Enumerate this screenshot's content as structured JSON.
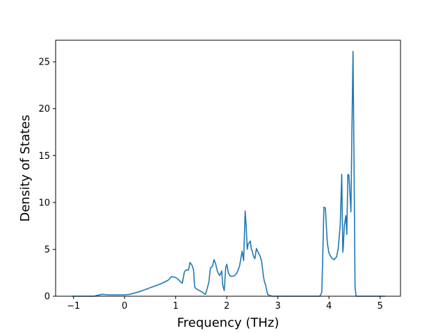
{
  "chart_data": {
    "type": "line",
    "title": "",
    "xlabel": "Frequency (THz)",
    "ylabel": "Density of States",
    "xlim": [
      -1.35,
      5.4
    ],
    "ylim": [
      0,
      27.3
    ],
    "xticks": [
      -1,
      0,
      1,
      2,
      3,
      4,
      5
    ],
    "yticks": [
      0,
      5,
      10,
      15,
      20,
      25
    ],
    "grid": false,
    "legend": "none",
    "series": [
      {
        "color": "#1f77b4",
        "x": [
          -1.03,
          -0.6,
          -0.45,
          -0.3,
          0.0,
          0.1,
          0.3,
          0.5,
          0.7,
          0.85,
          0.92,
          1.0,
          1.05,
          1.1,
          1.13,
          1.17,
          1.2,
          1.25,
          1.28,
          1.32,
          1.35,
          1.37,
          1.4,
          1.5,
          1.55,
          1.58,
          1.6,
          1.65,
          1.68,
          1.72,
          1.75,
          1.78,
          1.82,
          1.86,
          1.9,
          1.92,
          1.95,
          1.98,
          2.0,
          2.03,
          2.06,
          2.1,
          2.15,
          2.2,
          2.25,
          2.3,
          2.33,
          2.36,
          2.38,
          2.4,
          2.42,
          2.44,
          2.46,
          2.48,
          2.5,
          2.52,
          2.55,
          2.58,
          2.62,
          2.65,
          2.68,
          2.72,
          2.74,
          2.76,
          2.8,
          2.85,
          2.9,
          3.0,
          3.3,
          3.6,
          3.82,
          3.86,
          3.88,
          3.9,
          3.93,
          3.95,
          3.97,
          4.0,
          4.05,
          4.1,
          4.15,
          4.18,
          4.22,
          4.25,
          4.27,
          4.28,
          4.3,
          4.33,
          4.35,
          4.37,
          4.39,
          4.41,
          4.43,
          4.45,
          4.47,
          4.49,
          4.51,
          4.53,
          4.55,
          4.57,
          4.6,
          4.7,
          5.1
        ],
        "y": [
          0,
          0,
          0.2,
          0.15,
          0.15,
          0.2,
          0.5,
          0.9,
          1.3,
          1.7,
          2.1,
          2.0,
          1.8,
          1.5,
          1.4,
          2.6,
          2.8,
          2.8,
          3.6,
          3.3,
          2.8,
          1.0,
          0.8,
          0.5,
          0.3,
          0.2,
          0.5,
          1.5,
          3.0,
          3.2,
          3.9,
          3.5,
          2.6,
          2.2,
          2.7,
          1.2,
          0.6,
          3.1,
          3.4,
          2.5,
          2.2,
          2.1,
          2.2,
          2.5,
          3.2,
          4.8,
          3.8,
          9.1,
          7.4,
          5.0,
          5.6,
          5.7,
          5.9,
          5.0,
          4.8,
          4.3,
          4.0,
          5.1,
          4.6,
          4.3,
          3.8,
          2.0,
          1.5,
          1.2,
          0.2,
          0.05,
          0,
          0,
          0,
          0,
          0,
          0.4,
          4.5,
          9.5,
          9.4,
          7.3,
          5.6,
          4.6,
          4.1,
          3.9,
          4.2,
          5.1,
          7.6,
          13.0,
          4.7,
          5.2,
          7.5,
          8.6,
          6.6,
          13.0,
          12.9,
          11.0,
          9.0,
          18.0,
          26.1,
          15.0,
          1.0,
          0,
          0,
          0,
          0,
          0,
          0
        ]
      }
    ]
  }
}
